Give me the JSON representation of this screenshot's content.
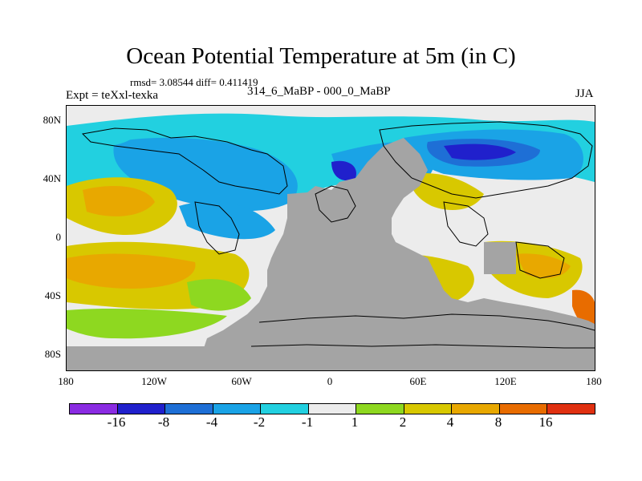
{
  "chart_data": {
    "type": "heatmap",
    "title": "Ocean Potential Temperature at 5m (in C)",
    "stats_text": "rmsd= 3.08544 diff= 0.411419",
    "left_subtitle": "Expt = teXxl-texka",
    "center_subtitle": "314_6_MaBP - 000_0_MaBP",
    "right_subtitle": "JJA",
    "xlabel": "",
    "ylabel": "",
    "x_ticks": [
      "180",
      "120W",
      "60W",
      "0",
      "60E",
      "120E",
      "180"
    ],
    "y_ticks": [
      "80N",
      "40N",
      "0",
      "40S",
      "80S"
    ],
    "colorbar": {
      "labels": [
        "-16",
        "-8",
        "-4",
        "-2",
        "-1",
        "1",
        "2",
        "4",
        "8",
        "16"
      ],
      "colors": [
        "#8a2be2",
        "#2020cc",
        "#1e6fd6",
        "#1aa3e6",
        "#22d0e0",
        "#ececec",
        "#8ed820",
        "#d8c800",
        "#e8a800",
        "#e86c00",
        "#e03010"
      ]
    },
    "land_color": "#a4a4a4"
  }
}
